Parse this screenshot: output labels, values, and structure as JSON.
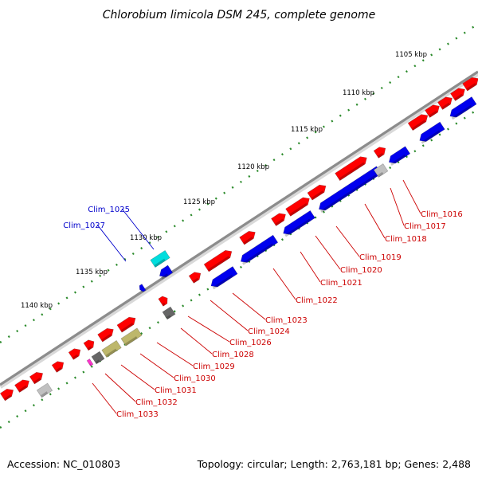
{
  "title": "Chlorobium limicola DSM 245, complete genome",
  "accession": "Accession: NC_010803",
  "summary": "Topology: circular; Length: 2,763,181 bp; Genes: 2,488",
  "colors": {
    "forward": "#ff0000",
    "reverse": "#0000ee",
    "trna": "#00dddd",
    "olive": "#bdb76b",
    "dark_gray": "#666666",
    "light_gray": "#c0c0c0",
    "magenta": "#ff33cc",
    "backbone": "#8c8c8c",
    "tick_minor": "#2a8a2a",
    "label_forward": "#cc0000",
    "label_reverse": "#0000cc"
  },
  "ticks": [
    {
      "label": "1105 kbp",
      "kbp": 1105
    },
    {
      "label": "1110 kbp",
      "kbp": 1110
    },
    {
      "label": "1115 kbp",
      "kbp": 1115
    },
    {
      "label": "1120 kbp",
      "kbp": 1120
    },
    {
      "label": "1125 kbp",
      "kbp": 1125
    },
    {
      "label": "1130 kbp",
      "kbp": 1130
    },
    {
      "label": "1135 kbp",
      "kbp": 1135
    },
    {
      "label": "1140 kbp",
      "kbp": 1140
    }
  ],
  "gene_labels": [
    {
      "name": "Clim_1016",
      "strand": "forward"
    },
    {
      "name": "Clim_1017",
      "strand": "forward"
    },
    {
      "name": "Clim_1018",
      "strand": "forward"
    },
    {
      "name": "Clim_1019",
      "strand": "forward"
    },
    {
      "name": "Clim_1020",
      "strand": "forward"
    },
    {
      "name": "Clim_1021",
      "strand": "forward"
    },
    {
      "name": "Clim_1022",
      "strand": "forward"
    },
    {
      "name": "Clim_1023",
      "strand": "forward"
    },
    {
      "name": "Clim_1024",
      "strand": "forward"
    },
    {
      "name": "Clim_1026",
      "strand": "forward"
    },
    {
      "name": "Clim_1028",
      "strand": "forward"
    },
    {
      "name": "Clim_1029",
      "strand": "forward"
    },
    {
      "name": "Clim_1030",
      "strand": "forward"
    },
    {
      "name": "Clim_1031",
      "strand": "forward"
    },
    {
      "name": "Clim_1032",
      "strand": "forward"
    },
    {
      "name": "Clim_1033",
      "strand": "forward"
    },
    {
      "name": "Clim_1025",
      "strand": "reverse"
    },
    {
      "name": "Clim_1027",
      "strand": "reverse"
    }
  ]
}
